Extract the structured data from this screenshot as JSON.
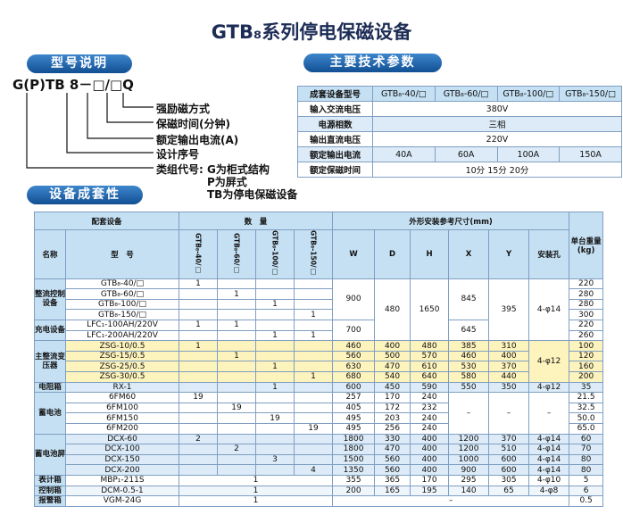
{
  "title": "GTB₈系列停电保磁设备",
  "sections": [
    "型号说明",
    "主要技术参数",
    "设备成套性"
  ],
  "model": {
    "code": "G(P)TB 8－□/□Q",
    "fields": [
      "强励磁方式",
      "保磁时间(分钟)",
      "额定输出电流(A)",
      "设计序号",
      "类组代号:"
    ],
    "notes": [
      "G为柜式结构",
      "P为屏式",
      "TB为停电保磁设备"
    ]
  },
  "specs": {
    "rows": [
      [
        "成套设备型号",
        "GTB₈-40/□",
        "GTB₈-60/□",
        "GTB₈-100/□",
        "GTB₈-150/□"
      ],
      [
        "输入交流电压",
        "380V"
      ],
      [
        "电源相数",
        "三相"
      ],
      [
        "输出直流电压",
        "220V"
      ],
      [
        "额定输出电流",
        "40A",
        "60A",
        "100A",
        "150A"
      ],
      [
        "额定保磁时间",
        "10分 15分 20分"
      ]
    ]
  },
  "equipment": {
    "header": {
      "group1": "配套设备",
      "group2": "数　量",
      "group3": "外形安装参考尺寸(mm)",
      "weight": "单台重量(kg)",
      "columns": [
        "名称",
        "型　号",
        "GTB₈-40/□",
        "GTB₈-60/□",
        "GTB₈-100/□",
        "GTB₈-150/□",
        "W",
        "D",
        "H",
        "X",
        "Y",
        "安装孔"
      ]
    },
    "rows": [
      {
        "name": "整流控制设备",
        "model": "GTB₈-40/□",
        "qty": [
          "1"
        ],
        "dims": [
          "900",
          "480",
          "1650",
          "845",
          "395"
        ],
        "hole": "4-φ14",
        "weight": "220"
      },
      {
        "model": "GTB₈-60/□",
        "qty": [
          "1"
        ],
        "weight": "280"
      },
      {
        "model": "GTB₈-100/□",
        "qty": [
          "1"
        ],
        "weight": "280"
      },
      {
        "model": "GTB₈-150/□",
        "qty": [
          "1"
        ],
        "weight": "300"
      },
      {
        "name": "充电设备",
        "model": "LFC₁-100AH/220V",
        "qty": [
          "1",
          "1"
        ],
        "dims": [
          "700",
          "645"
        ],
        "weight": "220"
      },
      {
        "model": "LFC₁-200AH/220V",
        "qty": [
          "1",
          "1"
        ],
        "weight": "260"
      },
      {
        "name": "主整流变压器",
        "model": "ZSG-10/0.5",
        "qty": [
          "1"
        ],
        "dims": [
          "460",
          "400",
          "480",
          "385",
          "310"
        ],
        "hole": "4-φ12",
        "weight": "100"
      },
      {
        "model": "ZSG-15/0.5",
        "qty": [
          "1"
        ],
        "dims": [
          "560",
          "500",
          "570",
          "460",
          "400"
        ],
        "weight": "120"
      },
      {
        "model": "ZSG-25/0.5",
        "qty": [
          "1"
        ],
        "dims": [
          "630",
          "470",
          "610",
          "530",
          "370"
        ],
        "weight": "160"
      },
      {
        "model": "ZSG-30/0.5",
        "qty": [
          "1"
        ],
        "dims": [
          "680",
          "540",
          "640",
          "580",
          "440"
        ],
        "weight": "200"
      },
      {
        "name": "电阻箱",
        "model": "RX-1",
        "qty": [
          "1"
        ],
        "dims": [
          "600",
          "450",
          "590",
          "550",
          "350"
        ],
        "hole": "4-φ12",
        "weight": "35"
      },
      {
        "name": "蓄电池",
        "model": "6FM60",
        "qty": [
          "19"
        ],
        "dims": [
          "257",
          "170",
          "240",
          "–",
          "–"
        ],
        "hole": "–",
        "weight": "21.5"
      },
      {
        "model": "6FM100",
        "qty": [
          "19"
        ],
        "dims": [
          "405",
          "172",
          "232"
        ],
        "weight": "32.5"
      },
      {
        "model": "6FM150",
        "qty": [
          "19"
        ],
        "dims": [
          "495",
          "203",
          "240"
        ],
        "weight": "50.0"
      },
      {
        "model": "6FM200",
        "qty": [
          "19"
        ],
        "dims": [
          "495",
          "256",
          "240"
        ],
        "weight": "65.0"
      },
      {
        "name": "蓄电池屏",
        "model": "DCX-60",
        "qty": [
          "2"
        ],
        "dims": [
          "1800",
          "330",
          "400",
          "1200",
          "370"
        ],
        "hole": "4-φ14",
        "weight": "60"
      },
      {
        "model": "DCX-100",
        "qty": [
          "2"
        ],
        "dims": [
          "1800",
          "470",
          "400",
          "1200",
          "510"
        ],
        "hole": "4-φ14",
        "weight": "70"
      },
      {
        "model": "DCX-150",
        "qty": [
          "3"
        ],
        "dims": [
          "1500",
          "560",
          "400",
          "1000",
          "600"
        ],
        "hole": "4-φ14",
        "weight": "80"
      },
      {
        "model": "DCX-200",
        "qty": [
          "4"
        ],
        "dims": [
          "1350",
          "560",
          "400",
          "900",
          "600"
        ],
        "hole": "4-φ14",
        "weight": "80"
      },
      {
        "name": "表计箱",
        "model": "MBP₁-211S",
        "qty": [
          "1"
        ],
        "dims": [
          "355",
          "365",
          "170",
          "295",
          "305"
        ],
        "hole": "4-φ10",
        "weight": "5"
      },
      {
        "name": "控制箱",
        "model": "DCM-0.5-1",
        "qty": [
          "1"
        ],
        "dims": [
          "200",
          "165",
          "195",
          "140",
          "65"
        ],
        "hole": "4-φ8",
        "weight": "6"
      },
      {
        "name": "报警箱",
        "model": "VGM-24G",
        "qty": [
          "1"
        ],
        "dims": [
          "–"
        ],
        "weight": "0.5"
      }
    ]
  }
}
